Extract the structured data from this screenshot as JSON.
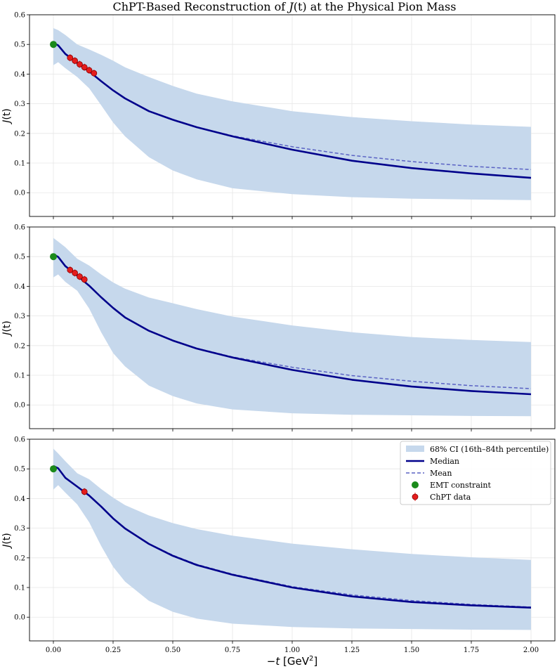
{
  "chart_data": {
    "type": "line",
    "title": "ChPT-Based Reconstruction of J(t) at the Physical Pion Mass",
    "title_parts": {
      "prefix": "ChPT-Based Reconstruction of ",
      "func": "J",
      "arg": "(t)",
      "suffix": " at the Physical Pion Mass"
    },
    "xlabel": "−t [GeV²]",
    "xlabel_parts": {
      "minus": "−",
      "var": "t",
      "unit": " [GeV",
      "exp": "2",
      "close": "]"
    },
    "ylabel": "J(t)",
    "ylabel_parts": {
      "func": "J",
      "arg": "(t)"
    },
    "xlim": [
      -0.1,
      2.1
    ],
    "ylim": [
      -0.08,
      0.6
    ],
    "xticks": [
      0.0,
      0.25,
      0.5,
      0.75,
      1.0,
      1.25,
      1.5,
      1.75,
      2.0
    ],
    "xtick_labels": [
      "0.00",
      "0.25",
      "0.50",
      "0.75",
      "1.00",
      "1.25",
      "1.50",
      "1.75",
      "2.00"
    ],
    "yticks": [
      0.0,
      0.1,
      0.2,
      0.3,
      0.4,
      0.5,
      0.6
    ],
    "ytick_labels": [
      "0.0",
      "0.1",
      "0.2",
      "0.3",
      "0.4",
      "0.5",
      "0.6"
    ],
    "grid": true,
    "legend": {
      "location": "upper right of bottom panel",
      "entries": [
        "68% CI (16th–84th percentile)",
        "Median",
        "Mean",
        "EMT constraint",
        "ChPT data"
      ]
    },
    "colors": {
      "band": "#c6d8ec",
      "median": "#00008b",
      "mean": "#5a62c4",
      "emt": "#1a8a1a",
      "chpt": "#e51c1c"
    },
    "x": [
      0.0,
      0.02,
      0.05,
      0.1,
      0.15,
      0.2,
      0.25,
      0.3,
      0.4,
      0.5,
      0.6,
      0.75,
      1.0,
      1.25,
      1.5,
      1.75,
      2.0
    ],
    "panels": [
      {
        "median": [
          0.505,
          0.497,
          0.468,
          0.437,
          0.409,
          0.376,
          0.345,
          0.318,
          0.275,
          0.246,
          0.221,
          0.19,
          0.145,
          0.108,
          0.083,
          0.065,
          0.05
        ],
        "mean": [
          0.505,
          0.497,
          0.468,
          0.437,
          0.409,
          0.376,
          0.345,
          0.318,
          0.275,
          0.246,
          0.221,
          0.192,
          0.155,
          0.126,
          0.105,
          0.089,
          0.078
        ],
        "ci_upper": [
          0.555,
          0.548,
          0.532,
          0.5,
          0.483,
          0.465,
          0.445,
          0.423,
          0.39,
          0.36,
          0.334,
          0.308,
          0.275,
          0.255,
          0.241,
          0.23,
          0.222
        ],
        "ci_lower": [
          0.43,
          0.44,
          0.42,
          0.39,
          0.352,
          0.295,
          0.237,
          0.19,
          0.12,
          0.075,
          0.045,
          0.015,
          -0.005,
          -0.015,
          -0.02,
          -0.023,
          -0.025
        ],
        "emt": {
          "x": 0.0,
          "y": 0.5
        },
        "chpt": {
          "x": [
            0.07,
            0.09,
            0.11,
            0.13,
            0.15,
            0.17
          ],
          "y": [
            0.455,
            0.445,
            0.433,
            0.423,
            0.413,
            0.403
          ]
        }
      },
      {
        "median": [
          0.508,
          0.499,
          0.468,
          0.436,
          0.402,
          0.363,
          0.327,
          0.295,
          0.25,
          0.217,
          0.19,
          0.16,
          0.118,
          0.085,
          0.062,
          0.047,
          0.036
        ],
        "mean": [
          0.508,
          0.499,
          0.468,
          0.436,
          0.402,
          0.363,
          0.327,
          0.295,
          0.25,
          0.217,
          0.191,
          0.162,
          0.127,
          0.099,
          0.08,
          0.065,
          0.055
        ],
        "ci_upper": [
          0.563,
          0.551,
          0.532,
          0.493,
          0.47,
          0.44,
          0.413,
          0.392,
          0.362,
          0.343,
          0.323,
          0.298,
          0.268,
          0.245,
          0.229,
          0.219,
          0.212
        ],
        "ci_lower": [
          0.43,
          0.44,
          0.415,
          0.385,
          0.325,
          0.245,
          0.175,
          0.13,
          0.065,
          0.03,
          0.005,
          -0.015,
          -0.028,
          -0.033,
          -0.035,
          -0.037,
          -0.038
        ],
        "emt": {
          "x": 0.0,
          "y": 0.5
        },
        "chpt": {
          "x": [
            0.07,
            0.09,
            0.11,
            0.13
          ],
          "y": [
            0.455,
            0.445,
            0.433,
            0.423
          ]
        }
      },
      {
        "median": [
          0.51,
          0.502,
          0.47,
          0.44,
          0.41,
          0.373,
          0.333,
          0.299,
          0.247,
          0.207,
          0.176,
          0.143,
          0.1,
          0.07,
          0.051,
          0.04,
          0.032
        ],
        "mean": [
          0.51,
          0.502,
          0.47,
          0.44,
          0.41,
          0.373,
          0.333,
          0.299,
          0.248,
          0.209,
          0.178,
          0.145,
          0.103,
          0.075,
          0.056,
          0.043,
          0.034
        ],
        "ci_upper": [
          0.568,
          0.552,
          0.526,
          0.485,
          0.465,
          0.432,
          0.403,
          0.378,
          0.343,
          0.317,
          0.297,
          0.275,
          0.248,
          0.229,
          0.213,
          0.202,
          0.193
        ],
        "ci_lower": [
          0.43,
          0.445,
          0.42,
          0.38,
          0.32,
          0.24,
          0.17,
          0.12,
          0.055,
          0.018,
          -0.005,
          -0.022,
          -0.033,
          -0.038,
          -0.04,
          -0.042,
          -0.043
        ],
        "emt": {
          "x": 0.0,
          "y": 0.5
        },
        "chpt": {
          "x": [
            0.13
          ],
          "y": [
            0.423
          ]
        }
      }
    ]
  }
}
